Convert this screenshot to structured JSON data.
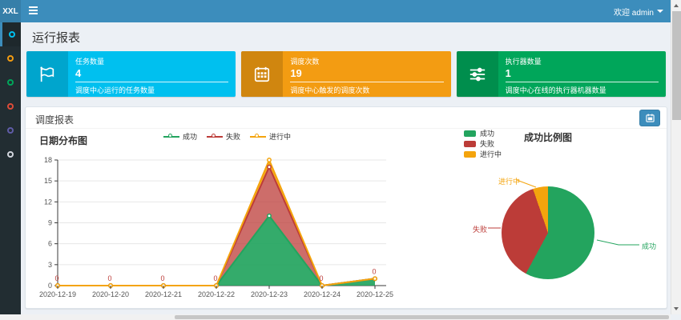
{
  "navbar": {
    "brand": "XXL",
    "welcome": "欢迎 admin"
  },
  "sidebar": {
    "items": [
      {
        "name": "report",
        "color": "#00c0ef",
        "active": true
      },
      {
        "name": "job",
        "color": "#f39c12",
        "active": false
      },
      {
        "name": "log",
        "color": "#00a65a",
        "active": false
      },
      {
        "name": "executor",
        "color": "#dd4b39",
        "active": false
      },
      {
        "name": "user",
        "color": "#605ca8",
        "active": false
      },
      {
        "name": "help",
        "color": "#d2d6de",
        "active": false
      }
    ]
  },
  "page_title": "运行报表",
  "stats": [
    {
      "label": "任务数量",
      "value": "4",
      "desc": "调度中心运行的任务数量",
      "color": "#00c0ef",
      "icon": "flag-icon"
    },
    {
      "label": "调度次数",
      "value": "19",
      "desc": "调度中心触发的调度次数",
      "color": "#f39c12",
      "icon": "calendar-icon"
    },
    {
      "label": "执行器数量",
      "value": "1",
      "desc": "调度中心在线的执行器机器数量",
      "color": "#00a65a",
      "icon": "sliders-icon"
    }
  ],
  "panel": {
    "title": "调度报表"
  },
  "chart_data": [
    {
      "type": "area",
      "title": "日期分布图",
      "stacked": true,
      "x": [
        "2020-12-19",
        "2020-12-20",
        "2020-12-21",
        "2020-12-22",
        "2020-12-23",
        "2020-12-24",
        "2020-12-25"
      ],
      "series": [
        {
          "name": "成功",
          "color": "#23A45E",
          "values": [
            0,
            0,
            0,
            0,
            10,
            0,
            1
          ]
        },
        {
          "name": "失败",
          "color": "#BC3C38",
          "values": [
            0,
            0,
            0,
            0,
            7,
            0,
            0
          ]
        },
        {
          "name": "进行中",
          "color": "#F4A40D",
          "values": [
            0,
            0,
            0,
            0,
            1,
            0,
            0
          ]
        }
      ],
      "point_labels": [
        "0",
        "0",
        "0",
        "0",
        "",
        "0",
        "0"
      ],
      "ylim": [
        0,
        18
      ],
      "yticks": [
        0,
        3,
        6,
        9,
        12,
        15,
        18
      ],
      "grid": true,
      "legend_position": "top"
    },
    {
      "type": "pie",
      "title": "成功比例图",
      "labels": [
        "成功",
        "失败",
        "进行中"
      ],
      "values": [
        11,
        7,
        1
      ],
      "colors": [
        "#23A45E",
        "#BC3C38",
        "#F4A40D"
      ],
      "legend_position": "left"
    }
  ],
  "ui_colors": {
    "navbar": "#3c8dbc",
    "logo": "#367fa9",
    "sidebar": "#222d32",
    "sidebar_active": "#1e282c",
    "background": "#ecf0f5",
    "button": "#3c8dbc"
  }
}
